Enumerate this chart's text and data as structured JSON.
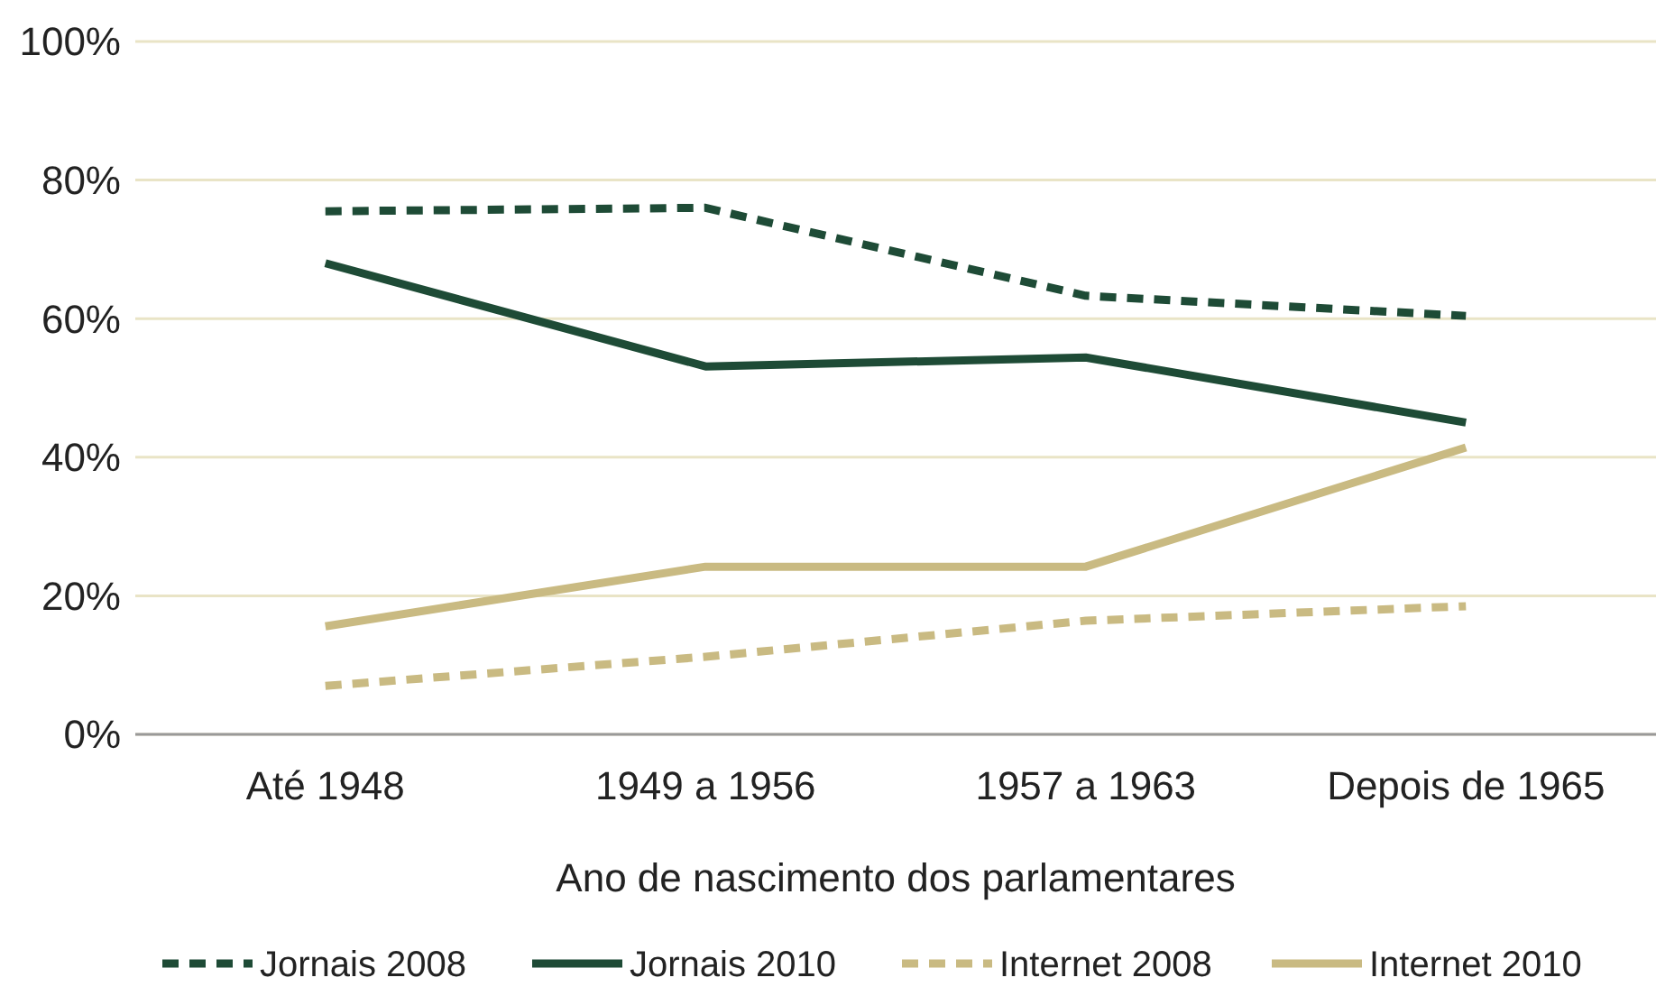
{
  "chart_data": {
    "type": "line",
    "xlabel": "Ano de nascimento dos parlamentares",
    "categories": [
      "Até 1948",
      "1949 a 1956",
      "1957 a 1963",
      "Depois de 1965"
    ],
    "series": [
      {
        "name": "Jornais 2008",
        "color": "#1e4b36",
        "line_style": "dashed",
        "values": [
          75.5,
          76,
          63.3,
          60.4
        ]
      },
      {
        "name": "Jornais 2010",
        "color": "#1e4b36",
        "line_style": "solid",
        "values": [
          68,
          53.1,
          54.4,
          45
        ]
      },
      {
        "name": "Internet 2008",
        "color": "#c9ba82",
        "line_style": "dashed",
        "values": [
          7,
          11.2,
          16.4,
          18.5
        ]
      },
      {
        "name": "Internet 2010",
        "color": "#c9ba82",
        "line_style": "solid",
        "values": [
          15.6,
          24.2,
          24.2,
          41.4
        ]
      }
    ],
    "ylim": [
      0,
      100
    ],
    "yticks": [
      {
        "value": 0,
        "label": "0%"
      },
      {
        "value": 20,
        "label": "20%"
      },
      {
        "value": 40,
        "label": "40%"
      },
      {
        "value": 60,
        "label": "60%"
      },
      {
        "value": 80,
        "label": "80%"
      },
      {
        "value": 100,
        "label": "100%"
      }
    ],
    "grid": "y",
    "legend": "bottom"
  }
}
